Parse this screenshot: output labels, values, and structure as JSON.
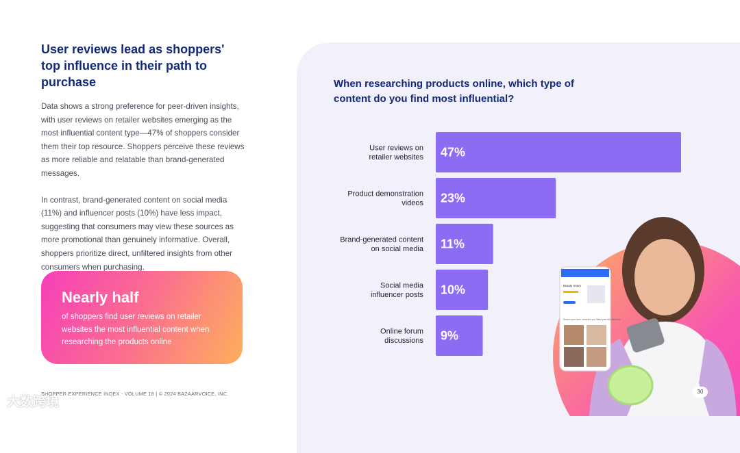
{
  "left": {
    "headline": "User reviews lead as shoppers' top influence in their path to purchase",
    "paragraph1": "Data shows a strong preference for peer-driven insights, with user reviews on retailer websites emerging as the most influential content type—47% of shoppers consider them their top resource. Shoppers perceive these reviews as more reliable and relatable than brand-generated messages.",
    "paragraph2": "In contrast, brand-generated content on social media (11%) and influencer posts (10%) have less impact, suggesting that consumers may view these sources as more promotional than genuinely informative. Overall, shoppers prioritize direct, unfiltered insights from other consumers when purchasing."
  },
  "callout": {
    "headline": "Nearly half",
    "text": "of shoppers find user reviews on retailer websites the most influential content when researching the products online"
  },
  "footer": {
    "text": "SHOPPER EXPERIENCE INDEX - VOLUME 18  |  © 2024 BAZAARVOICE, INC.",
    "watermark": "大数跨境",
    "page_number": "30"
  },
  "phone": {
    "header": "Beauty cream",
    "text": "Search your fave, what are you Read your full #Makeup"
  },
  "colors": {
    "bar": "#8b6cf2",
    "title": "#13297a",
    "panel": "#f1f0fb",
    "callout_start": "#f63fb9",
    "callout_end": "#fdb05c"
  },
  "chart_data": {
    "type": "bar",
    "orientation": "horizontal",
    "title": "When researching products online, which type of content do you find most influential?",
    "categories": [
      [
        "User reviews on",
        "retailer websites"
      ],
      [
        "Product demonstration",
        "videos"
      ],
      [
        "Brand-generated content",
        "on social media"
      ],
      [
        "Social media",
        "influencer posts"
      ],
      [
        "Online forum",
        "discussions"
      ]
    ],
    "values": [
      47,
      23,
      11,
      10,
      9
    ],
    "value_labels": [
      "47%",
      "23%",
      "11%",
      "10%",
      "9%"
    ],
    "xlim": [
      0,
      47
    ]
  }
}
